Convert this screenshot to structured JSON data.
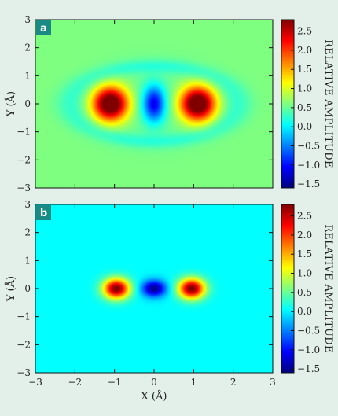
{
  "chart_data": [
    {
      "type": "heatmap",
      "panel_label": "a",
      "xlim": [
        -3,
        3
      ],
      "ylim": [
        -3,
        3
      ],
      "yticks": [
        -3,
        -2,
        -1,
        0,
        1,
        2,
        3
      ],
      "xticks": [
        -3,
        -2,
        -1,
        0,
        1,
        2,
        3
      ],
      "xlabel": "",
      "ylabel": "Y (Å)",
      "colorbar_label": "RELATIVE AMPLITUDE",
      "colorbar_range": [
        -1.6,
        2.8
      ],
      "colorbar_ticks": [
        2.5,
        2.0,
        1.5,
        1.0,
        0.5,
        0.0,
        -0.5,
        -1.0,
        -1.5
      ],
      "colormap": "jet",
      "features": [
        {
          "center": [
            -1.1,
            0.0
          ],
          "peak": 2.8
        },
        {
          "center": [
            1.1,
            0.0
          ],
          "peak": 2.8
        },
        {
          "center": [
            0.0,
            0.0
          ],
          "peak": -1.6
        }
      ],
      "background_level": 0.6
    },
    {
      "type": "heatmap",
      "panel_label": "b",
      "xlim": [
        -3,
        3
      ],
      "ylim": [
        -3,
        3
      ],
      "yticks": [
        -3,
        -2,
        -1,
        0,
        1,
        2,
        3
      ],
      "xticks": [
        -3,
        -2,
        -1,
        0,
        1,
        2,
        3
      ],
      "xlabel": "X (Å)",
      "ylabel": "Y (Å)",
      "colorbar_label": "RELATIVE AMPLITUDE",
      "colorbar_range": [
        -1.6,
        2.8
      ],
      "colorbar_ticks": [
        2.5,
        2.0,
        1.5,
        1.0,
        0.5,
        0.0,
        -0.5,
        -1.0,
        -1.5
      ],
      "colormap": "jet",
      "features": [
        {
          "center": [
            -0.95,
            0.0
          ],
          "peak": 2.8
        },
        {
          "center": [
            0.95,
            0.0
          ],
          "peak": 2.8
        },
        {
          "center": [
            0.0,
            0.0
          ],
          "peak": -1.6
        }
      ],
      "background_level": 0.05
    }
  ]
}
